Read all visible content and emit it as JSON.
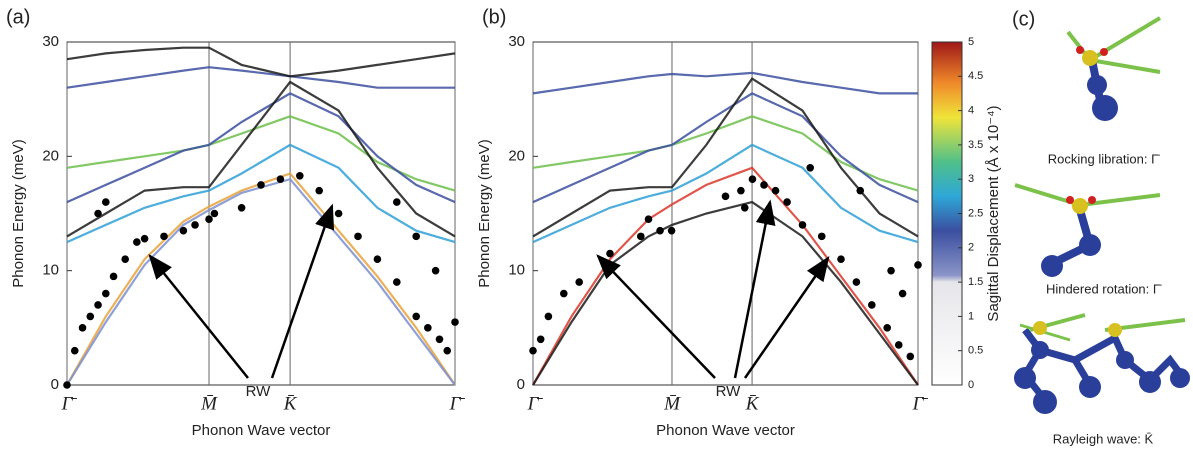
{
  "chart_data": [
    {
      "type": "line",
      "panel_label": "(a)",
      "xlabel": "Phonon Wave vector",
      "ylabel": "Phonon Energy (meV)",
      "annotation": "RW",
      "xlim": [
        0,
        1
      ],
      "ylim": [
        0,
        30
      ],
      "xticks": [
        {
          "value": 0,
          "label": "Γ̄"
        },
        {
          "value": 0.366,
          "label": "M̄"
        },
        {
          "value": 0.575,
          "label": "K̄"
        },
        {
          "value": 1,
          "label": "Γ̄"
        }
      ],
      "yticks": [
        0,
        10,
        20,
        30
      ],
      "x": [
        0,
        0.1,
        0.2,
        0.3,
        0.366,
        0.45,
        0.575,
        0.7,
        0.8,
        0.9,
        1
      ],
      "series": [
        {
          "color": "#3b4fa0",
          "values": [
            26,
            26.5,
            27,
            27.5,
            27.8,
            27.5,
            27,
            26.5,
            26,
            26,
            26
          ]
        },
        {
          "color": "#1a1a1a",
          "values": [
            28.5,
            29,
            29.3,
            29.5,
            29.5,
            28,
            27,
            27.5,
            28,
            28.5,
            29
          ]
        },
        {
          "color": "#6cc04a",
          "values": [
            19,
            19.5,
            20,
            20.5,
            21,
            22,
            23.5,
            22,
            19.5,
            18,
            17
          ]
        },
        {
          "color": "#3b4fa0",
          "values": [
            16,
            17.5,
            19,
            20.5,
            21,
            23,
            25.5,
            23.5,
            20,
            17.5,
            16
          ]
        },
        {
          "color": "#2e9fd6",
          "values": [
            12.5,
            14,
            15.5,
            16.5,
            17,
            18.5,
            21,
            19,
            15.5,
            13.5,
            12.5
          ]
        },
        {
          "color": "#1a1a1a",
          "values": [
            13,
            15,
            17,
            17.3,
            17.3,
            21,
            26.5,
            24,
            19,
            15,
            13
          ]
        },
        {
          "color": "#e8a23a",
          "values": [
            0,
            6,
            11,
            14.3,
            15.6,
            17,
            18.5,
            13.5,
            9.5,
            5,
            0
          ]
        },
        {
          "color": "#7b8fd0",
          "values": [
            0,
            5.5,
            10.5,
            14,
            15.3,
            16.8,
            18,
            13,
            9,
            4.5,
            0
          ]
        }
      ],
      "points": {
        "color": "#000000",
        "x": [
          0,
          0.02,
          0.04,
          0.06,
          0.08,
          0.1,
          0.12,
          0.15,
          0.18,
          0.2,
          0.25,
          0.3,
          0.33,
          0.366,
          0.38,
          0.45,
          0.5,
          0.55,
          0.6,
          0.65,
          0.7,
          0.75,
          0.8,
          0.85,
          0.9,
          0.93,
          0.96,
          0.98,
          1,
          0.9,
          0.85,
          0.95,
          0.08,
          0.1
        ],
        "y": [
          0,
          3,
          5,
          6,
          7,
          8,
          9.5,
          11,
          12.5,
          12.8,
          13,
          13.5,
          14,
          14.5,
          15,
          15.5,
          17.5,
          18,
          18.3,
          17,
          15,
          13,
          11,
          9,
          6,
          5,
          4,
          3,
          5.5,
          13,
          16,
          10,
          15,
          16
        ]
      }
    },
    {
      "type": "line",
      "panel_label": "(b)",
      "xlabel": "Phonon Wave vector",
      "ylabel": "Phonon Energy (meV)",
      "annotation": "RW",
      "xlim": [
        0,
        1
      ],
      "ylim": [
        0,
        30
      ],
      "xticks": [
        {
          "value": 0,
          "label": "Γ̄"
        },
        {
          "value": 0.361,
          "label": "M̄"
        },
        {
          "value": 0.569,
          "label": "K̄"
        },
        {
          "value": 1,
          "label": "Γ̄"
        }
      ],
      "yticks": [
        0,
        10,
        20,
        30
      ],
      "x": [
        0,
        0.1,
        0.2,
        0.3,
        0.361,
        0.45,
        0.569,
        0.7,
        0.8,
        0.9,
        1
      ],
      "series": [
        {
          "color": "#3b4fa0",
          "values": [
            25.5,
            26,
            26.5,
            27,
            27.2,
            27,
            27.3,
            26.5,
            26,
            25.5,
            25.5
          ]
        },
        {
          "color": "#6cc04a",
          "values": [
            19,
            19.5,
            20,
            20.5,
            21,
            22,
            23.5,
            22,
            19.5,
            18,
            17
          ]
        },
        {
          "color": "#3b4fa0",
          "values": [
            16,
            17.5,
            19,
            20.5,
            21,
            23,
            25.5,
            23.5,
            20,
            17.5,
            16
          ]
        },
        {
          "color": "#2e9fd6",
          "values": [
            12.5,
            14,
            15.5,
            16.5,
            17,
            18.5,
            21,
            19,
            15.5,
            13.5,
            12.5
          ]
        },
        {
          "color": "#1a1a1a",
          "values": [
            13,
            15,
            17,
            17.3,
            17.3,
            21,
            26.8,
            24,
            19,
            15,
            13
          ]
        },
        {
          "color": "#d93a2b",
          "values": [
            0,
            6,
            11,
            14.5,
            15.8,
            17.5,
            19,
            14,
            9.5,
            5,
            0
          ]
        },
        {
          "color": "#1a1a1a",
          "values": [
            0,
            5.5,
            10.5,
            13,
            14,
            15,
            16,
            13,
            9,
            4.5,
            0
          ]
        }
      ],
      "points": {
        "color": "#000000",
        "x": [
          0,
          0.02,
          0.04,
          0.08,
          0.12,
          0.2,
          0.28,
          0.3,
          0.33,
          0.36,
          0.5,
          0.54,
          0.57,
          0.6,
          0.63,
          0.66,
          0.7,
          0.75,
          0.8,
          0.84,
          0.88,
          0.92,
          0.95,
          0.98,
          0.93,
          0.96,
          1,
          0.55,
          0.72,
          0.85
        ],
        "y": [
          3,
          4,
          6,
          8,
          9,
          11.5,
          13,
          14.5,
          13.5,
          13.5,
          16.5,
          17,
          18,
          17.5,
          17,
          16,
          14,
          13,
          11,
          9,
          7,
          5,
          3.5,
          2.5,
          10,
          8,
          10.5,
          15.5,
          19,
          17
        ]
      }
    },
    {
      "type": "colorbar",
      "label": "Sagittal Displacement (Å x 10⁻⁴)",
      "ylim": [
        0,
        5
      ],
      "yticks": [
        0,
        0.5,
        1,
        1.5,
        2,
        2.5,
        3,
        3.5,
        4,
        4.5,
        5
      ]
    }
  ],
  "panel_c": {
    "label": "(c)",
    "captions": [
      "Rocking libration: Γ̄",
      "Hindered rotation: Γ̄",
      "Rayleigh wave: K̄"
    ]
  }
}
